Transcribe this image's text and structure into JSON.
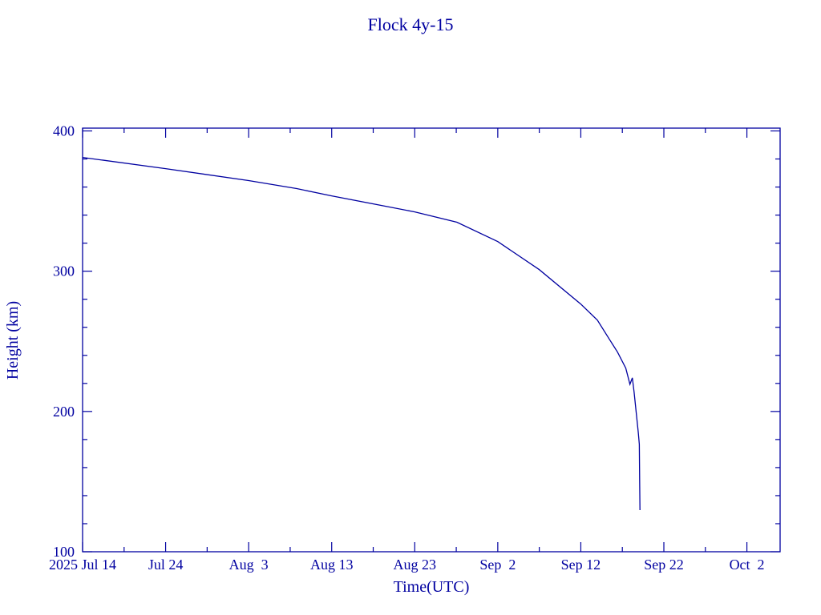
{
  "chart_data": {
    "type": "line",
    "title": "Flock 4y-15",
    "xlabel": "Time(UTC)",
    "ylabel": "Height (km)",
    "color": "#0000a0",
    "grid": false,
    "xlim": [
      "2025-07-14T00:00",
      "2025-10-06T00:00"
    ],
    "ylim": [
      100,
      402
    ],
    "x_year_label": "2025",
    "x_ticks": [
      {
        "date": "2025-07-14",
        "label": "Jul 14"
      },
      {
        "date": "2025-07-24",
        "label": "Jul 24"
      },
      {
        "date": "2025-08-03",
        "label": "Aug  3"
      },
      {
        "date": "2025-08-13",
        "label": "Aug 13"
      },
      {
        "date": "2025-08-23",
        "label": "Aug 23"
      },
      {
        "date": "2025-09-02",
        "label": "Sep  2"
      },
      {
        "date": "2025-09-12",
        "label": "Sep 12"
      },
      {
        "date": "2025-09-22",
        "label": "Sep 22"
      },
      {
        "date": "2025-10-02",
        "label": "Oct  2"
      }
    ],
    "y_ticks": [
      100,
      200,
      300,
      400
    ],
    "series": [
      {
        "x": [
          "2025-07-14T00:00",
          "2025-07-24T00:00",
          "2025-08-03T00:00",
          "2025-08-08T19:00",
          "2025-08-13T00:00",
          "2025-08-23T00:00",
          "2025-08-28T02:00",
          "2025-09-02T00:00",
          "2025-09-07T00:00",
          "2025-09-12T00:00",
          "2025-09-14T00:00",
          "2025-09-15T12:00",
          "2025-09-16T10:00",
          "2025-09-17T10:00",
          "2025-09-17T22:00",
          "2025-09-18T05:00",
          "2025-09-18T10:00",
          "2025-09-18T22:00",
          "2025-09-19T01:00",
          "2025-09-19T02:00",
          "2025-09-19T03:00"
        ],
        "y": [
          381.1,
          373.1,
          364.6,
          358.9,
          353.7,
          342.3,
          334.9,
          321.1,
          301.1,
          276.6,
          265.1,
          250.9,
          242.3,
          230.9,
          219.4,
          224.0,
          213.7,
          185.0,
          176.6,
          150.9,
          129.7
        ]
      }
    ]
  }
}
